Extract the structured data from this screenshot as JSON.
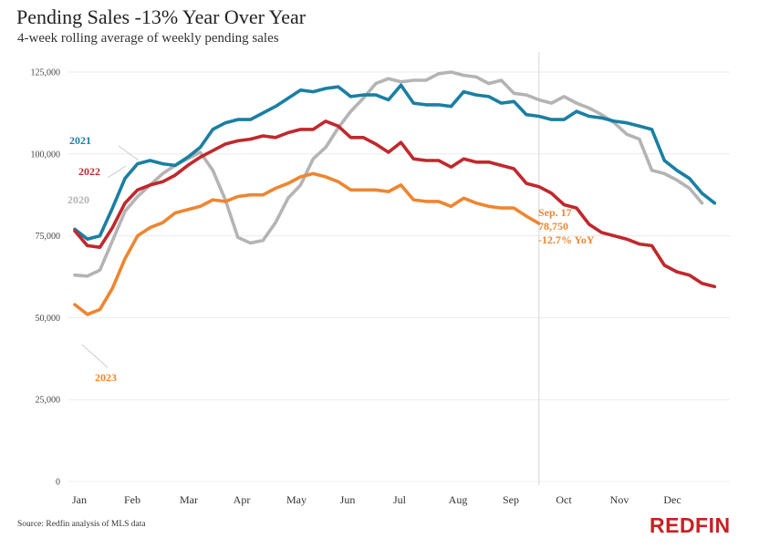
{
  "title": "Pending Sales -13% Year Over Year",
  "subtitle": "4-week rolling average of weekly pending sales",
  "source": "Source: Redfin analysis of MLS data",
  "brand": "REDFIN",
  "colors": {
    "2020": "#b4b4b4",
    "2021": "#1a7fa3",
    "2022": "#c0282d",
    "2023": "#ee8630",
    "brand": "#c82021",
    "grid": "#ececec",
    "marker": "#dddddd"
  },
  "chart_data": {
    "type": "line",
    "title": "Pending Sales -13% Year Over Year",
    "xlabel": "",
    "ylabel": "",
    "ylim": [
      0,
      125000
    ],
    "yticks": [
      0,
      25000,
      50000,
      75000,
      100000,
      125000
    ],
    "ytick_labels": [
      "0",
      "25,000",
      "50,000",
      "75,000",
      "100,000",
      "125,000"
    ],
    "x_unit": "week of year",
    "month_labels": [
      "Jan",
      "Feb",
      "Mar",
      "Apr",
      "May",
      "Jun",
      "Jul",
      "Aug",
      "Sep",
      "Oct",
      "Nov",
      "Dec"
    ],
    "marker_week": 37,
    "series": [
      {
        "name": "2020",
        "label": "2020",
        "values": [
          63000,
          62700,
          64500,
          73500,
          82500,
          87000,
          90500,
          94000,
          96500,
          98500,
          100500,
          95000,
          86000,
          74500,
          72800,
          73600,
          79000,
          86500,
          90500,
          98500,
          102000,
          108000,
          113000,
          117000,
          121500,
          123000,
          122000,
          122500,
          122500,
          124500,
          125000,
          124000,
          123500,
          121500,
          122500,
          118500,
          118000,
          116500,
          115500,
          117500,
          115500,
          114000,
          112000,
          109500,
          106000,
          104500,
          95000,
          94000,
          92000,
          89500,
          85000
        ]
      },
      {
        "name": "2021",
        "label": "2021",
        "values": [
          77000,
          74000,
          75000,
          83500,
          92500,
          97000,
          98000,
          97000,
          96500,
          99000,
          102000,
          107500,
          109500,
          110500,
          110500,
          112500,
          114500,
          117000,
          119500,
          119000,
          120000,
          120500,
          117500,
          118000,
          118000,
          116500,
          121000,
          115500,
          115000,
          115000,
          114500,
          119000,
          118000,
          117500,
          115500,
          116000,
          112000,
          111500,
          110500,
          110500,
          113000,
          111500,
          111000,
          110000,
          109500,
          108500,
          107500,
          98000,
          95000,
          92500,
          88000,
          85000
        ]
      },
      {
        "name": "2022",
        "label": "2022",
        "values": [
          76500,
          72000,
          71500,
          77500,
          85000,
          89000,
          90500,
          91500,
          93500,
          96500,
          99000,
          101000,
          103000,
          104000,
          104500,
          105500,
          105000,
          106500,
          107500,
          107500,
          110000,
          108500,
          105000,
          105000,
          103000,
          100500,
          103500,
          98500,
          98000,
          98000,
          96000,
          98500,
          97500,
          97500,
          96500,
          95500,
          91000,
          90000,
          88000,
          84500,
          83500,
          78500,
          76000,
          75000,
          74000,
          72500,
          72000,
          66000,
          64000,
          63000,
          60500,
          59500
        ]
      },
      {
        "name": "2023",
        "label": "2023",
        "values": [
          54000,
          51000,
          52500,
          59000,
          68000,
          75000,
          77500,
          79000,
          82000,
          83000,
          84000,
          86000,
          85500,
          87000,
          87500,
          87500,
          89500,
          91000,
          93000,
          94000,
          93000,
          91500,
          89000,
          89000,
          89000,
          88500,
          90500,
          86000,
          85500,
          85500,
          84000,
          86500,
          85000,
          84000,
          83500,
          83500,
          81000,
          78750
        ]
      }
    ],
    "annotation": {
      "date": "Sep. 17",
      "value": "78,750",
      "change": "-12.7% YoY"
    }
  }
}
